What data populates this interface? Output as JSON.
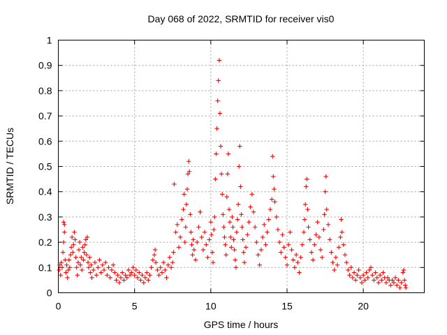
{
  "chart_data": {
    "type": "scatter",
    "title": "Day 068 of 2022, SRMTID for receiver vis0",
    "xlabel": "GPS time / hours",
    "ylabel": "SRMTID / TECUs",
    "xlim": [
      0,
      24
    ],
    "ylim": [
      0,
      1
    ],
    "xticks": [
      0,
      5,
      10,
      15,
      20
    ],
    "xtick_labels": [
      "0",
      "5",
      "10",
      "15",
      "20"
    ],
    "yticks": [
      0,
      0.1,
      0.2,
      0.3,
      0.4,
      0.5,
      0.6,
      0.7,
      0.8,
      0.9,
      1
    ],
    "ytick_labels": [
      "0",
      "0.1",
      "0.2",
      "0.3",
      "0.4",
      "0.5",
      "0.6",
      "0.7",
      "0.8",
      "0.9",
      "1"
    ],
    "grid": true,
    "marker": "+",
    "color": "#ff0000",
    "series": [
      {
        "name": "vis0",
        "points": [
          [
            0.05,
            0.09
          ],
          [
            0.1,
            0.11
          ],
          [
            0.15,
            0.07
          ],
          [
            0.2,
            0.12
          ],
          [
            0.25,
            0.1
          ],
          [
            0.3,
            0.16
          ],
          [
            0.35,
            0.2
          ],
          [
            0.35,
            0.28
          ],
          [
            0.4,
            0.24
          ],
          [
            0.4,
            0.27
          ],
          [
            0.45,
            0.13
          ],
          [
            0.5,
            0.08
          ],
          [
            0.55,
            0.11
          ],
          [
            0.6,
            0.06
          ],
          [
            0.65,
            0.09
          ],
          [
            0.7,
            0.13
          ],
          [
            0.75,
            0.1
          ],
          [
            0.8,
            0.15
          ],
          [
            0.85,
            0.18
          ],
          [
            0.9,
            0.22
          ],
          [
            0.95,
            0.16
          ],
          [
            1.0,
            0.19
          ],
          [
            1.05,
            0.24
          ],
          [
            1.1,
            0.21
          ],
          [
            1.15,
            0.14
          ],
          [
            1.2,
            0.1
          ],
          [
            1.25,
            0.07
          ],
          [
            1.3,
            0.12
          ],
          [
            1.35,
            0.17
          ],
          [
            1.4,
            0.2
          ],
          [
            1.45,
            0.11
          ],
          [
            1.5,
            0.14
          ],
          [
            1.55,
            0.09
          ],
          [
            1.6,
            0.18
          ],
          [
            1.65,
            0.13
          ],
          [
            1.7,
            0.16
          ],
          [
            1.75,
            0.19
          ],
          [
            1.8,
            0.21
          ],
          [
            1.85,
            0.15
          ],
          [
            1.9,
            0.22
          ],
          [
            1.95,
            0.12
          ],
          [
            2.0,
            0.1
          ],
          [
            2.05,
            0.14
          ],
          [
            2.1,
            0.08
          ],
          [
            2.15,
            0.11
          ],
          [
            2.2,
            0.06
          ],
          [
            2.3,
            0.09
          ],
          [
            2.4,
            0.12
          ],
          [
            2.5,
            0.07
          ],
          [
            2.6,
            0.1
          ],
          [
            2.7,
            0.13
          ],
          [
            2.8,
            0.08
          ],
          [
            2.9,
            0.11
          ],
          [
            3.0,
            0.09
          ],
          [
            3.1,
            0.12
          ],
          [
            3.2,
            0.07
          ],
          [
            3.3,
            0.1
          ],
          [
            3.4,
            0.06
          ],
          [
            3.5,
            0.09
          ],
          [
            3.6,
            0.11
          ],
          [
            3.7,
            0.08
          ],
          [
            3.8,
            0.05
          ],
          [
            3.9,
            0.07
          ],
          [
            4.0,
            0.04
          ],
          [
            4.1,
            0.06
          ],
          [
            4.2,
            0.08
          ],
          [
            4.3,
            0.05
          ],
          [
            4.4,
            0.07
          ],
          [
            4.5,
            0.06
          ],
          [
            4.6,
            0.09
          ],
          [
            4.7,
            0.07
          ],
          [
            4.8,
            0.08
          ],
          [
            4.9,
            0.1
          ],
          [
            5.0,
            0.07
          ],
          [
            5.1,
            0.09
          ],
          [
            5.2,
            0.06
          ],
          [
            5.3,
            0.08
          ],
          [
            5.4,
            0.05
          ],
          [
            5.5,
            0.07
          ],
          [
            5.6,
            0.04
          ],
          [
            5.7,
            0.06
          ],
          [
            5.8,
            0.08
          ],
          [
            5.9,
            0.05
          ],
          [
            6.0,
            0.07
          ],
          [
            6.1,
            0.1
          ],
          [
            6.2,
            0.13
          ],
          [
            6.3,
            0.15
          ],
          [
            6.35,
            0.17
          ],
          [
            6.4,
            0.12
          ],
          [
            6.5,
            0.09
          ],
          [
            6.6,
            0.07
          ],
          [
            6.7,
            0.1
          ],
          [
            6.8,
            0.08
          ],
          [
            6.9,
            0.12
          ],
          [
            7.0,
            0.09
          ],
          [
            7.1,
            0.06
          ],
          [
            7.2,
            0.11
          ],
          [
            7.3,
            0.14
          ],
          [
            7.4,
            0.1
          ],
          [
            7.5,
            0.12
          ],
          [
            7.55,
            0.16
          ],
          [
            7.6,
            0.43
          ],
          [
            7.7,
            0.24
          ],
          [
            7.8,
            0.27
          ],
          [
            7.9,
            0.18
          ],
          [
            8.0,
            0.22
          ],
          [
            8.1,
            0.29
          ],
          [
            8.2,
            0.33
          ],
          [
            8.25,
            0.39
          ],
          [
            8.3,
            0.2
          ],
          [
            8.35,
            0.26
          ],
          [
            8.4,
            0.35
          ],
          [
            8.45,
            0.41
          ],
          [
            8.5,
            0.47
          ],
          [
            8.55,
            0.52
          ],
          [
            8.6,
            0.48
          ],
          [
            8.65,
            0.31
          ],
          [
            8.7,
            0.24
          ],
          [
            8.75,
            0.19
          ],
          [
            8.8,
            0.15
          ],
          [
            8.85,
            0.21
          ],
          [
            8.9,
            0.17
          ],
          [
            9.0,
            0.13
          ],
          [
            9.1,
            0.2
          ],
          [
            9.2,
            0.26
          ],
          [
            9.3,
            0.32
          ],
          [
            9.4,
            0.22
          ],
          [
            9.5,
            0.17
          ],
          [
            9.6,
            0.24
          ],
          [
            9.7,
            0.19
          ],
          [
            9.8,
            0.14
          ],
          [
            9.9,
            0.21
          ],
          [
            10.0,
            0.28
          ],
          [
            10.05,
            0.23
          ],
          [
            10.1,
            0.16
          ],
          [
            10.15,
            0.12
          ],
          [
            10.2,
            0.25
          ],
          [
            10.25,
            0.3
          ],
          [
            10.3,
            0.45
          ],
          [
            10.35,
            0.55
          ],
          [
            10.4,
            0.65
          ],
          [
            10.45,
            0.76
          ],
          [
            10.5,
            0.84
          ],
          [
            10.55,
            0.92
          ],
          [
            10.6,
            0.71
          ],
          [
            10.65,
            0.58
          ],
          [
            10.7,
            0.47
          ],
          [
            10.75,
            0.39
          ],
          [
            10.8,
            0.31
          ],
          [
            10.85,
            0.26
          ],
          [
            10.9,
            0.22
          ],
          [
            10.95,
            0.19
          ],
          [
            11.0,
            0.15
          ],
          [
            11.05,
            0.38
          ],
          [
            11.1,
            0.47
          ],
          [
            11.15,
            0.55
          ],
          [
            11.2,
            0.33
          ],
          [
            11.25,
            0.28
          ],
          [
            11.3,
            0.22
          ],
          [
            11.35,
            0.18
          ],
          [
            11.4,
            0.3
          ],
          [
            11.45,
            0.26
          ],
          [
            11.5,
            0.21
          ],
          [
            11.55,
            0.17
          ],
          [
            11.6,
            0.13
          ],
          [
            11.65,
            0.1
          ],
          [
            11.7,
            0.24
          ],
          [
            11.75,
            0.29
          ],
          [
            11.8,
            0.35
          ],
          [
            11.85,
            0.5
          ],
          [
            11.9,
            0.58
          ],
          [
            11.95,
            0.42
          ],
          [
            12.0,
            0.31
          ],
          [
            12.05,
            0.26
          ],
          [
            12.1,
            0.21
          ],
          [
            12.15,
            0.16
          ],
          [
            12.2,
            0.12
          ],
          [
            12.3,
            0.18
          ],
          [
            12.4,
            0.23
          ],
          [
            12.5,
            0.28
          ],
          [
            12.6,
            0.34
          ],
          [
            12.7,
            0.39
          ],
          [
            12.8,
            0.32
          ],
          [
            12.9,
            0.26
          ],
          [
            13.0,
            0.2
          ],
          [
            13.1,
            0.15
          ],
          [
            13.2,
            0.11
          ],
          [
            13.3,
            0.17
          ],
          [
            13.4,
            0.22
          ],
          [
            13.5,
            0.27
          ],
          [
            13.6,
            0.19
          ],
          [
            13.7,
            0.24
          ],
          [
            13.8,
            0.29
          ],
          [
            13.9,
            0.33
          ],
          [
            14.0,
            0.37
          ],
          [
            14.05,
            0.54
          ],
          [
            14.1,
            0.46
          ],
          [
            14.15,
            0.41
          ],
          [
            14.2,
            0.36
          ],
          [
            14.3,
            0.3
          ],
          [
            14.4,
            0.25
          ],
          [
            14.5,
            0.2
          ],
          [
            14.6,
            0.16
          ],
          [
            14.7,
            0.23
          ],
          [
            14.8,
            0.18
          ],
          [
            14.9,
            0.14
          ],
          [
            15.0,
            0.11
          ],
          [
            15.1,
            0.19
          ],
          [
            15.2,
            0.24
          ],
          [
            15.3,
            0.17
          ],
          [
            15.4,
            0.13
          ],
          [
            15.5,
            0.1
          ],
          [
            15.6,
            0.15
          ],
          [
            15.7,
            0.12
          ],
          [
            15.8,
            0.08
          ],
          [
            15.9,
            0.14
          ],
          [
            16.0,
            0.19
          ],
          [
            16.1,
            0.24
          ],
          [
            16.15,
            0.29
          ],
          [
            16.2,
            0.35
          ],
          [
            16.25,
            0.42
          ],
          [
            16.3,
            0.45
          ],
          [
            16.35,
            0.33
          ],
          [
            16.4,
            0.26
          ],
          [
            16.5,
            0.21
          ],
          [
            16.6,
            0.16
          ],
          [
            16.7,
            0.13
          ],
          [
            16.8,
            0.19
          ],
          [
            16.9,
            0.23
          ],
          [
            17.0,
            0.28
          ],
          [
            17.1,
            0.22
          ],
          [
            17.2,
            0.17
          ],
          [
            17.3,
            0.14
          ],
          [
            17.4,
            0.25
          ],
          [
            17.45,
            0.31
          ],
          [
            17.5,
            0.4
          ],
          [
            17.55,
            0.46
          ],
          [
            17.6,
            0.33
          ],
          [
            17.7,
            0.27
          ],
          [
            17.8,
            0.21
          ],
          [
            17.9,
            0.16
          ],
          [
            18.0,
            0.12
          ],
          [
            18.1,
            0.09
          ],
          [
            18.2,
            0.14
          ],
          [
            18.3,
            0.11
          ],
          [
            18.4,
            0.18
          ],
          [
            18.5,
            0.22
          ],
          [
            18.55,
            0.29
          ],
          [
            18.6,
            0.24
          ],
          [
            18.7,
            0.19
          ],
          [
            18.8,
            0.15
          ],
          [
            18.9,
            0.12
          ],
          [
            19.0,
            0.09
          ],
          [
            19.1,
            0.07
          ],
          [
            19.2,
            0.1
          ],
          [
            19.3,
            0.06
          ],
          [
            19.4,
            0.08
          ],
          [
            19.5,
            0.05
          ],
          [
            19.6,
            0.07
          ],
          [
            19.7,
            0.09
          ],
          [
            19.8,
            0.06
          ],
          [
            19.9,
            0.04
          ],
          [
            20.0,
            0.07
          ],
          [
            20.1,
            0.05
          ],
          [
            20.2,
            0.08
          ],
          [
            20.3,
            0.06
          ],
          [
            20.4,
            0.09
          ],
          [
            20.5,
            0.1
          ],
          [
            20.6,
            0.07
          ],
          [
            20.7,
            0.05
          ],
          [
            20.8,
            0.08
          ],
          [
            20.9,
            0.06
          ],
          [
            21.0,
            0.04
          ],
          [
            21.1,
            0.07
          ],
          [
            21.2,
            0.05
          ],
          [
            21.3,
            0.08
          ],
          [
            21.4,
            0.06
          ],
          [
            21.5,
            0.04
          ],
          [
            21.6,
            0.06
          ],
          [
            21.7,
            0.05
          ],
          [
            21.8,
            0.03
          ],
          [
            21.9,
            0.05
          ],
          [
            22.0,
            0.04
          ],
          [
            22.1,
            0.06
          ],
          [
            22.2,
            0.03
          ],
          [
            22.3,
            0.05
          ],
          [
            22.4,
            0.02
          ],
          [
            22.5,
            0.04
          ],
          [
            22.6,
            0.08
          ],
          [
            22.65,
            0.09
          ],
          [
            22.7,
            0.05
          ],
          [
            22.75,
            0.03
          ],
          [
            22.8,
            0.02
          ]
        ]
      }
    ]
  }
}
